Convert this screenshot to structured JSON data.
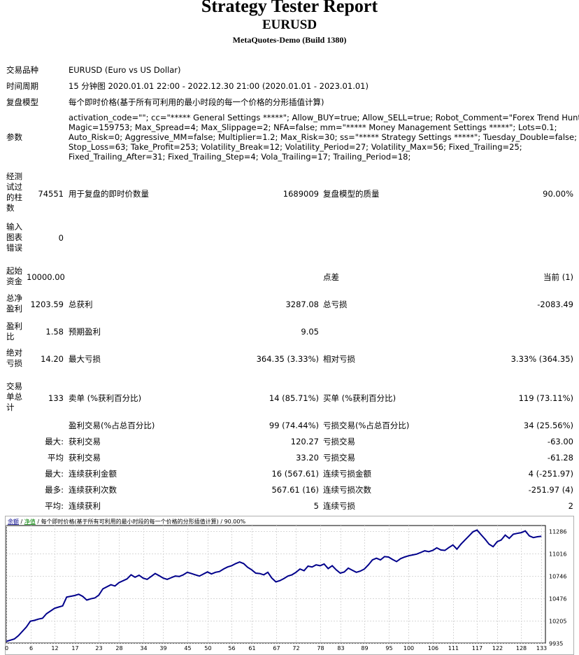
{
  "header": {
    "title": "Strategy Tester Report",
    "symbol": "EURUSD",
    "build": "MetaQuotes-Demo (Build 1380)"
  },
  "settings": {
    "symbol_label": "交易品种",
    "symbol_value": "EURUSD (Euro vs US Dollar)",
    "period_label": "时间周期",
    "period_value": "15 分钟图 2020.01.01 22:00 - 2022.12.30 21:00 (2020.01.01 - 2023.01.01)",
    "model_label": "复盘模型",
    "model_value": "每个即时价格(基于所有可利用的最小时段的每一个价格的分形插值计算)",
    "params_label": "参数",
    "params_lines": [
      "activation_code=\"\"; cc=\"***** General Settings *****\"; Allow_BUY=true; Allow_SELL=true; Robot_Comment=\"Forex Trend Hunter\";",
      "Magic=159753; Max_Spread=4; Max_Slippage=2; NFA=false; mm=\"***** Money Management Settings *****\"; Lots=0.1;",
      "Auto_Risk=0; Aggressive_MM=false; Multiplier=1.2; Max_Risk=30; ss=\"***** Strategy Settings *****\"; Tuesday_Double=false;",
      "Stop_Loss=63; Take_Profit=253; Volatility_Break=12; Volatility_Period=27; Volatility_Max=56; Fixed_Trailing=25;",
      "Fixed_Trailing_After=31; Fixed_Trailing_Step=4; Vola_Trailing=17; Trailing_Period=18;"
    ]
  },
  "stats": {
    "bars_label": "经测试过的柱数",
    "bars_value": "74551",
    "ticks_label": "用于复盘的即时价数量",
    "ticks_value": "1689009",
    "quality_label": "复盘模型的质量",
    "quality_value": "90.00%",
    "errors_label": "输入图表错误",
    "errors_value": "0",
    "deposit_label": "起始资金",
    "deposit_value": "10000.00",
    "spread_label": "点差",
    "spread_value": "当前 (1)",
    "net_profit_label": "总净盈利",
    "net_profit_value": "1203.59",
    "gross_profit_label": "总获利",
    "gross_profit_value": "3287.08",
    "gross_loss_label": "总亏损",
    "gross_loss_value": "-2083.49",
    "profit_factor_label": "盈利比",
    "profit_factor_value": "1.58",
    "expected_payoff_label": "预期盈利",
    "expected_payoff_value": "9.05",
    "abs_drawdown_label": "绝对亏损",
    "abs_drawdown_value": "14.20",
    "max_drawdown_label": "最大亏损",
    "max_drawdown_value": "364.35 (3.33%)",
    "rel_drawdown_label": "相对亏损",
    "rel_drawdown_value": "3.33% (364.35)",
    "total_trades_label": "交易单总计",
    "total_trades_value": "133",
    "short_label": "卖单 (%获利百分比)",
    "short_value": "14 (85.71%)",
    "long_label": "买单 (%获利百分比)",
    "long_value": "119 (73.11%)",
    "profit_trades_label": "盈利交易(%占总百分比)",
    "profit_trades_value": "99 (74.44%)",
    "loss_trades_label": "亏损交易(%占总百分比)",
    "loss_trades_value": "34 (25.56%)",
    "largest_prefix": "最大:",
    "largest_profit_label": "获利交易",
    "largest_profit_value": "120.27",
    "largest_loss_label": "亏损交易",
    "largest_loss_value": "-63.00",
    "average_prefix": "平均",
    "average_profit_label": "获利交易",
    "average_profit_value": "33.20",
    "average_loss_label": "亏损交易",
    "average_loss_value": "-61.28",
    "max_consec_prefix": "最大:",
    "max_consec_wins_label": "连续获利金额",
    "max_consec_wins_value": "16 (567.61)",
    "max_consec_losses_label": "连续亏损金额",
    "max_consec_losses_value": "4 (-251.97)",
    "most_consec_prefix": "最多:",
    "most_consec_profit_label": "连续获利次数",
    "most_consec_profit_value": "567.61 (16)",
    "most_consec_loss_label": "连续亏损次数",
    "most_consec_loss_value": "-251.97 (4)",
    "avg_consec_prefix": "平均:",
    "avg_consec_wins_label": "连续获利",
    "avg_consec_wins_value": "5",
    "avg_consec_losses_label": "连续亏损",
    "avg_consec_losses_value": "2"
  },
  "chart_data": {
    "type": "line",
    "legend_balance": "余额",
    "legend_equity": "净值",
    "legend_rest": "每个即时价格(基于所有可利用的最小时段的每一个价格的分形插值计算) / 90.00%",
    "line_color": "#00008b",
    "yticks": [
      9935,
      10205,
      10476,
      10746,
      11016,
      11286
    ],
    "ylim": [
      9935,
      11355
    ],
    "xticks": [
      0,
      6,
      12,
      17,
      23,
      28,
      34,
      39,
      45,
      50,
      56,
      61,
      67,
      72,
      78,
      83,
      89,
      95,
      100,
      106,
      111,
      117,
      122,
      128,
      133
    ],
    "xlim": [
      0,
      134
    ],
    "x": [
      0,
      2,
      3,
      5,
      6,
      7,
      8,
      9,
      10,
      12,
      13,
      14,
      15,
      17,
      18,
      19,
      20,
      21,
      22,
      23,
      24,
      26,
      27,
      28,
      30,
      31,
      32,
      33,
      34,
      35,
      36,
      37,
      38,
      39,
      40,
      41,
      42,
      43,
      44,
      45,
      46,
      47,
      48,
      49,
      50,
      51,
      52,
      53,
      54,
      55,
      56,
      57,
      58,
      59,
      60,
      61,
      62,
      63,
      64,
      65,
      66,
      67,
      68,
      69,
      70,
      71,
      72,
      73,
      74,
      75,
      76,
      77,
      78,
      79,
      80,
      81,
      82,
      83,
      84,
      85,
      86,
      87,
      88,
      89,
      90,
      91,
      92,
      93,
      94,
      95,
      96,
      97,
      98,
      99,
      100,
      101,
      102,
      103,
      104,
      105,
      106,
      107,
      108,
      109,
      110,
      111,
      112,
      113,
      114,
      115,
      116,
      117,
      118,
      119,
      120,
      121,
      122,
      123,
      124,
      125,
      126,
      127,
      128,
      129,
      130,
      131,
      132,
      133
    ],
    "values": [
      9955,
      9985,
      10025,
      10130,
      10200,
      10210,
      10225,
      10235,
      10290,
      10355,
      10370,
      10385,
      10490,
      10510,
      10525,
      10500,
      10455,
      10470,
      10480,
      10515,
      10590,
      10640,
      10625,
      10665,
      10710,
      10760,
      10730,
      10755,
      10720,
      10705,
      10740,
      10775,
      10750,
      10720,
      10705,
      10725,
      10745,
      10740,
      10760,
      10790,
      10775,
      10760,
      10745,
      10770,
      10795,
      10770,
      10790,
      10800,
      10830,
      10855,
      10870,
      10895,
      10915,
      10895,
      10850,
      10820,
      10780,
      10775,
      10760,
      10790,
      10720,
      10675,
      10690,
      10715,
      10745,
      10760,
      10790,
      10830,
      10810,
      10865,
      10855,
      10880,
      10870,
      10890,
      10835,
      10870,
      10820,
      10780,
      10795,
      10840,
      10815,
      10790,
      10805,
      10830,
      10880,
      10940,
      10960,
      10940,
      10980,
      10975,
      10945,
      10920,
      10955,
      10975,
      10990,
      11000,
      11010,
      11030,
      11050,
      11040,
      11055,
      11085,
      11060,
      11055,
      11090,
      11120,
      11070,
      11130,
      11180,
      11230,
      11280,
      11300,
      11245,
      11190,
      11130,
      11100,
      11160,
      11180,
      11240,
      11200,
      11250,
      11260,
      11270,
      11290,
      11230,
      11210,
      11220,
      11225
    ]
  }
}
